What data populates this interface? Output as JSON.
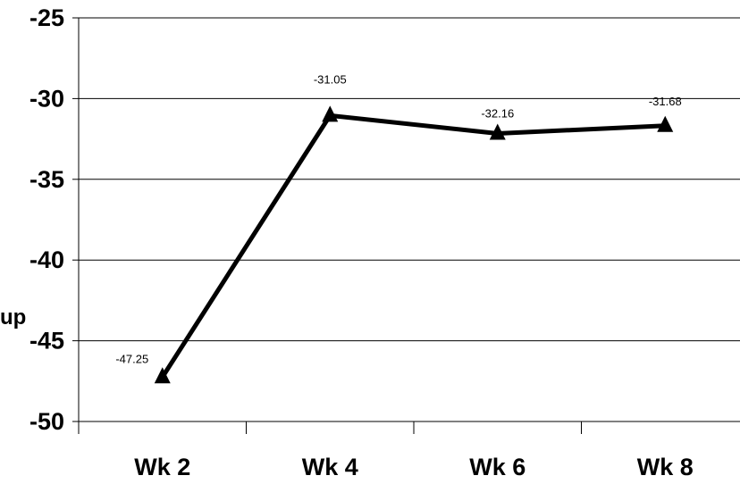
{
  "chart_data": {
    "type": "line",
    "categories": [
      "Wk 2",
      "Wk 4",
      "Wk 6",
      "Wk 8"
    ],
    "series": [
      {
        "values": [
          -47.25,
          -31.05,
          -32.16,
          -31.68
        ],
        "marker": "triangle",
        "color": "#000000"
      }
    ],
    "data_labels": [
      "-47.25",
      "-31.05",
      "-32.16",
      "-31.68"
    ],
    "ylabel": "up",
    "ylim": [
      -50,
      -25
    ],
    "yticks": [
      -25,
      -30,
      -35,
      -40,
      -45,
      -50
    ],
    "ytick_labels": [
      "-25",
      "-30",
      "-35",
      "-40",
      "-45",
      "-50"
    ],
    "grid": true,
    "legend": "none"
  }
}
